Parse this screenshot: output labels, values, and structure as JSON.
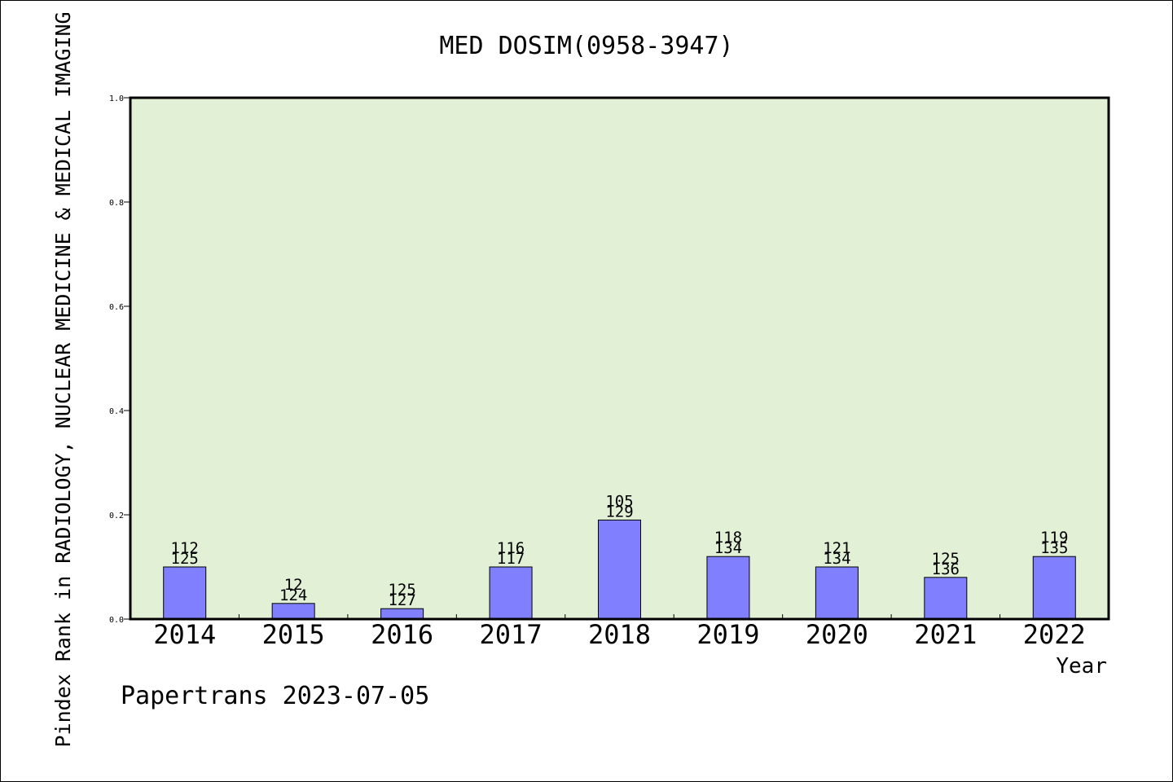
{
  "chart_data": {
    "type": "bar",
    "title": "MED DOSIM(0958-3947)",
    "ylabel": "Pindex Rank in RADIOLOGY, NUCLEAR MEDICINE & MEDICAL IMAGING",
    "xlabel": "Year",
    "footer": "Papertrans 2023-07-05",
    "ylim": [
      0,
      1.0
    ],
    "yticks": [
      "0.0",
      "0.2",
      "0.4",
      "0.6",
      "0.8",
      "1.0"
    ],
    "categories": [
      "2014",
      "2015",
      "2016",
      "2017",
      "2018",
      "2019",
      "2020",
      "2021",
      "2022"
    ],
    "values": [
      0.1,
      0.03,
      0.02,
      0.1,
      0.19,
      0.12,
      0.1,
      0.08,
      0.12
    ],
    "labels_top": [
      "112",
      "12",
      "125",
      "116",
      "105",
      "118",
      "121",
      "125",
      "119"
    ],
    "labels_bottom": [
      "125",
      "124",
      "127",
      "117",
      "129",
      "134",
      "134",
      "136",
      "135"
    ],
    "colors": {
      "plot_bg": "#e2f0d6",
      "bar_fill": "#8080ff",
      "bar_stroke": "#000000",
      "frame": "#000000"
    },
    "grid": false
  }
}
